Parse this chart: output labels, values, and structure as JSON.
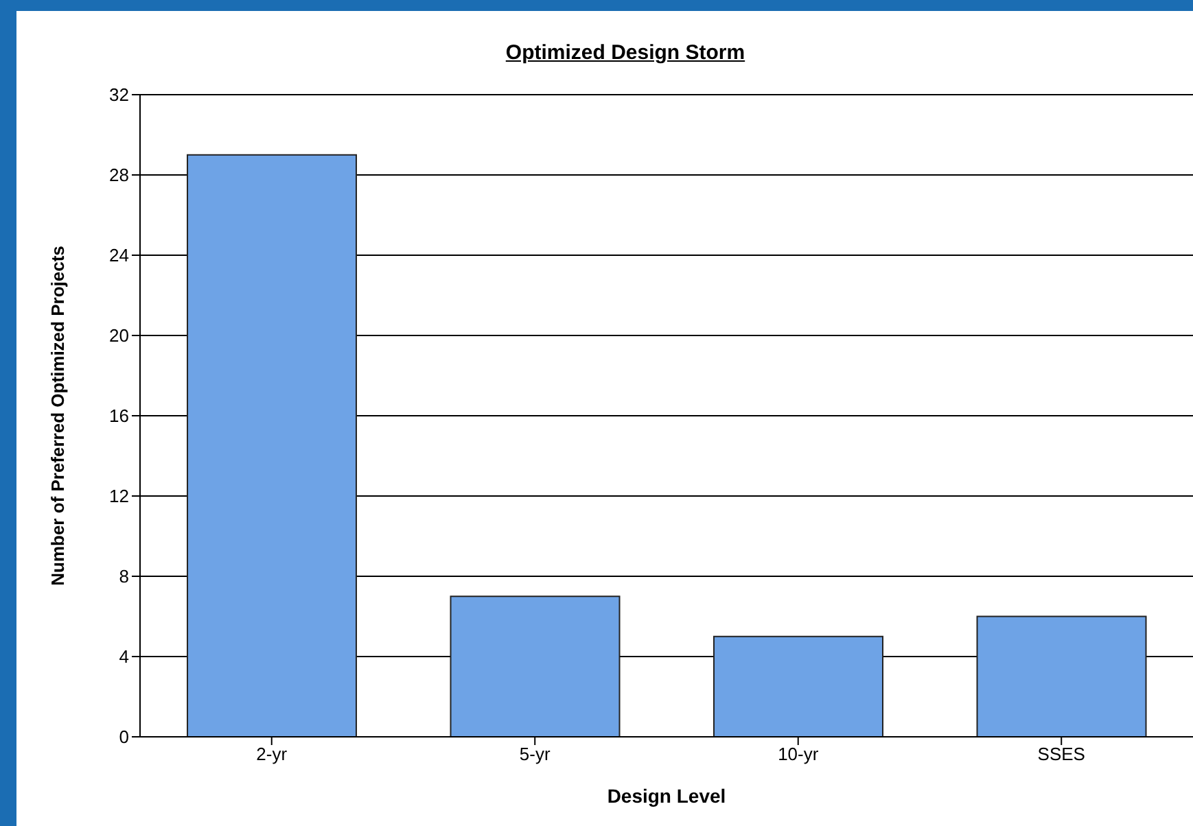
{
  "chart_data": {
    "type": "bar",
    "title": "Optimized Design Storm",
    "xlabel": "Design Level",
    "ylabel": "Number of Preferred Optimized Projects",
    "categories": [
      "2-yr",
      "5-yr",
      "10-yr",
      "SSES"
    ],
    "values": [
      29,
      7,
      5,
      6
    ],
    "color": "#6ea3e6",
    "ylim": [
      0,
      32
    ],
    "yticks": [
      0,
      4,
      8,
      12,
      16,
      20,
      24,
      28,
      32
    ],
    "grid": "y"
  }
}
